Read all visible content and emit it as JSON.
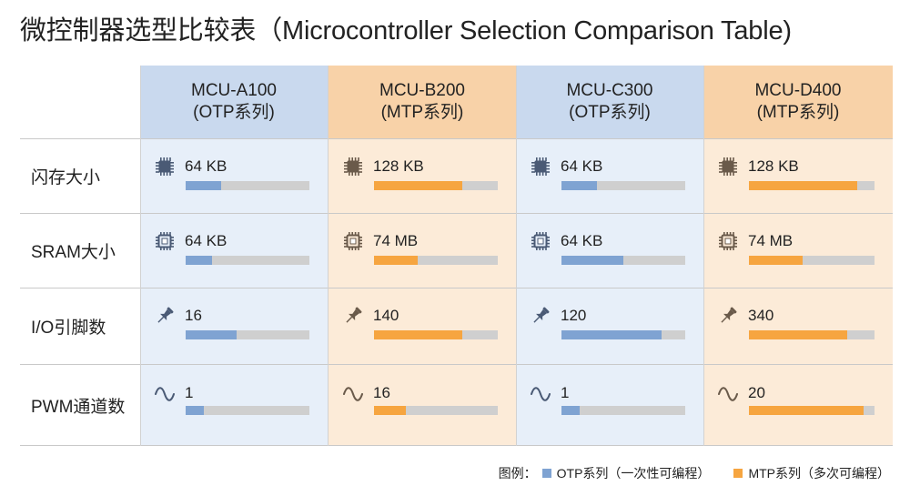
{
  "title": "微控制器选型比较表（Microcontroller Selection Comparison Table)",
  "columns": [
    {
      "name": "MCU-A100",
      "series": "(OTP系列)",
      "type": "otp"
    },
    {
      "name": "MCU-B200",
      "series": "(MTP系列)",
      "type": "mtp"
    },
    {
      "name": "MCU-C300",
      "series": "(OTP系列)",
      "type": "otp"
    },
    {
      "name": "MCU-D400",
      "series": "(MTP系列)",
      "type": "mtp"
    }
  ],
  "rows": [
    {
      "label": "闪存大小",
      "icon": "chip-icon",
      "cells": [
        {
          "value": "64 KB",
          "fill": 0.29
        },
        {
          "value": "128 KB",
          "fill": 0.71
        },
        {
          "value": "64 KB",
          "fill": 0.29
        },
        {
          "value": "128 KB",
          "fill": 0.86
        }
      ]
    },
    {
      "label": "SRAM大小",
      "icon": "memory-icon",
      "cells": [
        {
          "value": "64 KB",
          "fill": 0.21
        },
        {
          "value": "74 MB",
          "fill": 0.35
        },
        {
          "value": "64 KB",
          "fill": 0.5
        },
        {
          "value": "74 MB",
          "fill": 0.43
        }
      ]
    },
    {
      "label": "I/O引脚数",
      "icon": "pushpin-icon",
      "cells": [
        {
          "value": "16",
          "fill": 0.41
        },
        {
          "value": "140",
          "fill": 0.71
        },
        {
          "value": "120",
          "fill": 0.81
        },
        {
          "value": "340",
          "fill": 0.78
        }
      ]
    },
    {
      "label": "PWM通道数",
      "icon": "sine-wave-icon",
      "cells": [
        {
          "value": "1",
          "fill": 0.15
        },
        {
          "value": "16",
          "fill": 0.26
        },
        {
          "value": "1",
          "fill": 0.15
        },
        {
          "value": "20",
          "fill": 0.91
        }
      ]
    }
  ],
  "legend": {
    "prefix": "图例：",
    "otp": "OTP系列（一次性可编程）",
    "mtp": "MTP系列（多次可编程）"
  },
  "colors": {
    "otp_bar": "#7fa3d2",
    "mtp_bar": "#f6a540",
    "otp_header": "#c9d9ee",
    "mtp_header": "#f8d2a8",
    "otp_body": "#e7eff9",
    "mtp_body": "#fcebd8",
    "otp_icon": "#4a5a75",
    "mtp_icon": "#6a5a4a"
  }
}
